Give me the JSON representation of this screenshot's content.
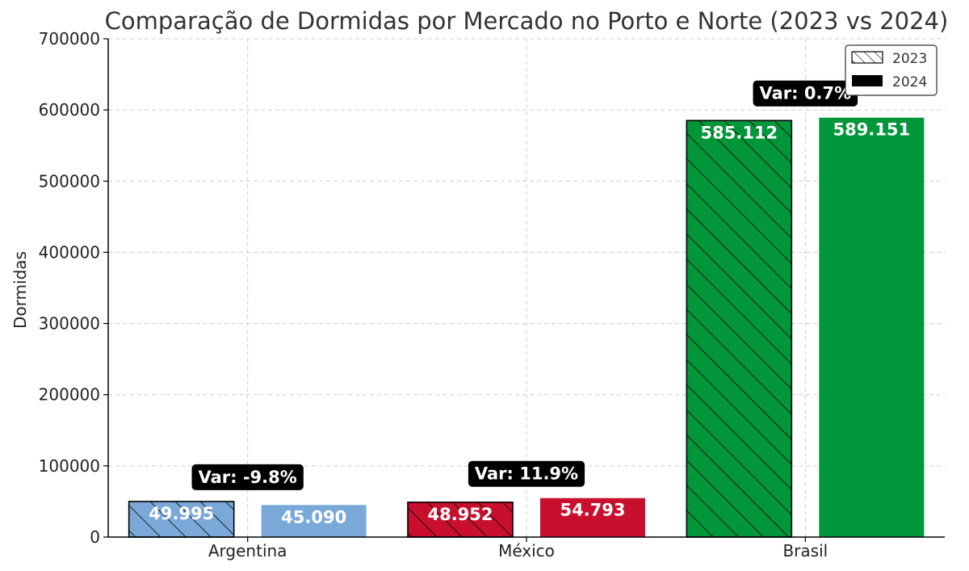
{
  "chart_data": {
    "type": "bar",
    "title": "Comparação de Dormidas por Mercado no Porto e Norte (2023 vs 2024)",
    "xlabel": "",
    "ylabel": "Dormidas",
    "ylim": [
      0,
      700000
    ],
    "yticks": [
      "0",
      "100000",
      "200000",
      "300000",
      "400000",
      "500000",
      "600000",
      "700000"
    ],
    "grid": true,
    "legend_position": "top-right",
    "categories": [
      "Argentina",
      "México",
      "Brasil"
    ],
    "category_colors": [
      "#7aa9d9",
      "#c8102e",
      "#009639"
    ],
    "series": [
      {
        "name": "2023",
        "values": [
          49995,
          48952,
          585112
        ],
        "labels": [
          "49.995",
          "48.952",
          "585.112"
        ],
        "pattern": "hatched"
      },
      {
        "name": "2024",
        "values": [
          45090,
          54793,
          589151
        ],
        "labels": [
          "45.090",
          "54.793",
          "589.151"
        ],
        "pattern": "solid"
      }
    ],
    "annotations": [
      "Var: -9.8%",
      "Var: 11.9%",
      "Var: 0.7%"
    ]
  }
}
